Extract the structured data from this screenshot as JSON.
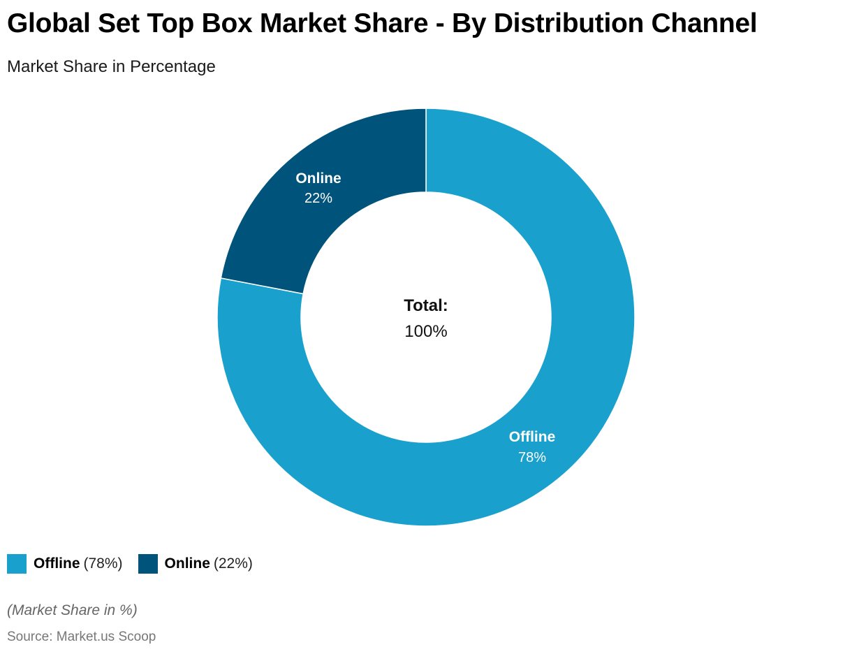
{
  "title": "Global Set Top Box Market Share - By Distribution Channel",
  "subtitle": "Market Share in Percentage",
  "chart_data": {
    "type": "pie",
    "variant": "donut",
    "slices": [
      {
        "name": "Offline",
        "value": 78,
        "value_label": "78%",
        "legend_value": "(78%)",
        "color": "#1aa0cd"
      },
      {
        "name": "Online",
        "value": 22,
        "value_label": "22%",
        "legend_value": "(22%)",
        "color": "#00537a"
      }
    ],
    "center_label": "Total:",
    "center_value": "100%",
    "legend_position": "bottom-left"
  },
  "note": "(Market Share in %)",
  "source": "Source: Market.us Scoop"
}
